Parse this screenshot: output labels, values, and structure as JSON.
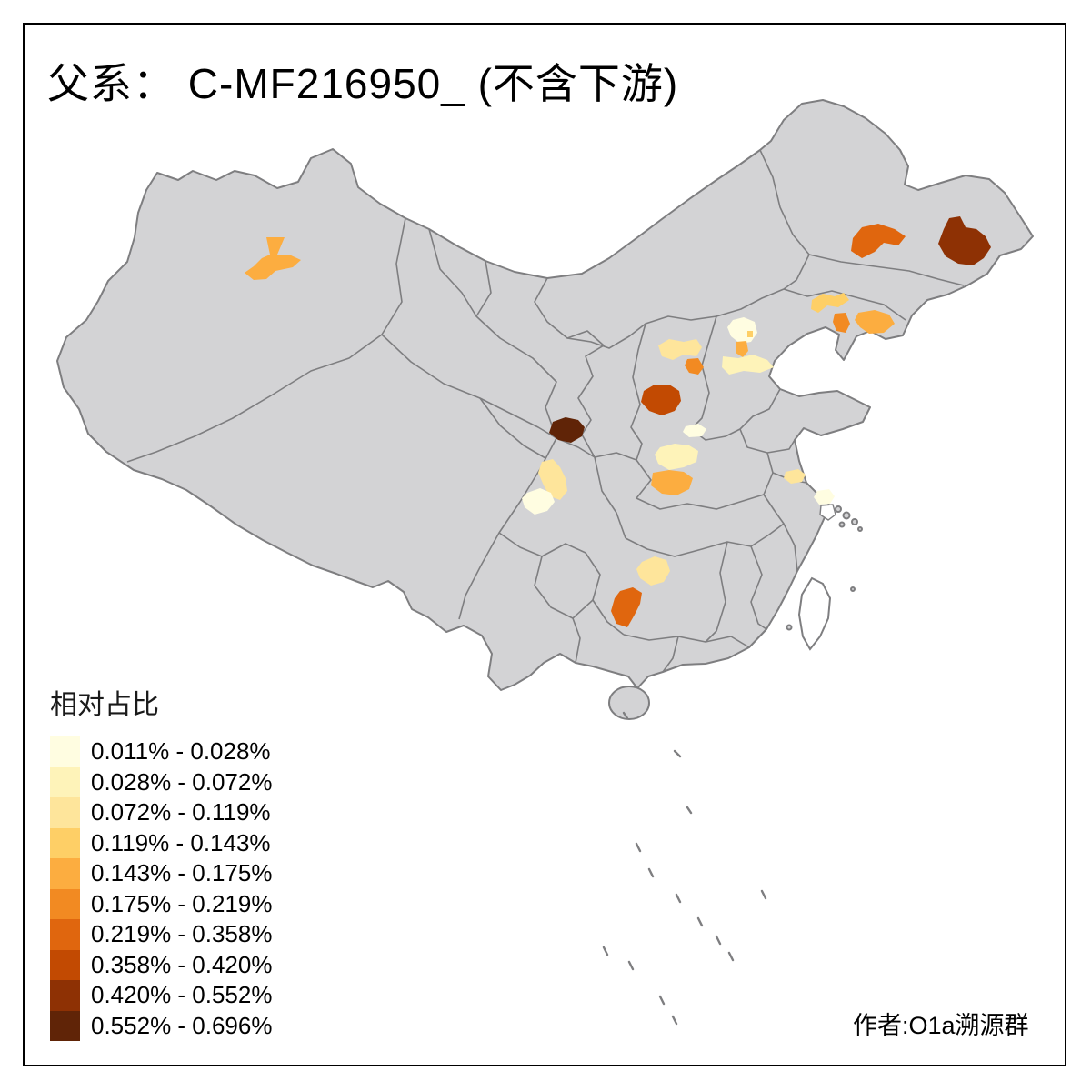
{
  "title": "父系：  C-MF216950_ (不含下游)",
  "attribution": "作者:O1a溯源群",
  "legend": {
    "title": "相对占比",
    "classes": [
      {
        "label": "0.011% - 0.028%",
        "color": "#FFFDE1"
      },
      {
        "label": "0.028% - 0.072%",
        "color": "#FEF3B9"
      },
      {
        "label": "0.072% - 0.119%",
        "color": "#FEE59B"
      },
      {
        "label": "0.119% - 0.143%",
        "color": "#FECF66"
      },
      {
        "label": "0.143% - 0.175%",
        "color": "#FCAD40"
      },
      {
        "label": "0.175% - 0.219%",
        "color": "#F28A22"
      },
      {
        "label": "0.219% - 0.358%",
        "color": "#E0660E"
      },
      {
        "label": "0.358% - 0.420%",
        "color": "#C24A02"
      },
      {
        "label": "0.420% - 0.552%",
        "color": "#8E3104"
      },
      {
        "label": "0.552% - 0.696%",
        "color": "#602407"
      }
    ]
  },
  "map": {
    "land_fill": "#D3D3D5",
    "border_color": "#7E7E80",
    "sea_fill": "#FFFFFF",
    "uncolored_island_fill": "#FFFFFF",
    "regions": [
      {
        "name": "region-north-xinjiang",
        "class": 5
      },
      {
        "name": "region-west-jilin",
        "class": 7
      },
      {
        "name": "region-east-jilin-heilongjiang",
        "class": 9
      },
      {
        "name": "region-central-liaoning-nw",
        "class": 4
      },
      {
        "name": "region-central-liaoning",
        "class": 6
      },
      {
        "name": "region-se-liaoning",
        "class": 5
      },
      {
        "name": "region-beijing",
        "class": 1
      },
      {
        "name": "region-beijing-urban",
        "class": 4
      },
      {
        "name": "region-north-tianjin",
        "class": 5
      },
      {
        "name": "region-south-tianjin-hebei",
        "class": 2
      },
      {
        "name": "region-north-shanxi",
        "class": 3
      },
      {
        "name": "region-east-shanxi",
        "class": 6
      },
      {
        "name": "region-southwest-shanxi",
        "class": 8
      },
      {
        "name": "region-south-shanxi-small",
        "class": 1
      },
      {
        "name": "region-south-shanxi-large",
        "class": 2
      },
      {
        "name": "region-west-henan",
        "class": 5
      },
      {
        "name": "region-central-shaanxi",
        "class": 10
      },
      {
        "name": "region-northeast-sichuan",
        "class": 3
      },
      {
        "name": "region-central-sichuan",
        "class": 1
      },
      {
        "name": "region-central-anhui",
        "class": 3
      },
      {
        "name": "region-south-jiangsu",
        "class": 1
      },
      {
        "name": "region-northwest-hunan",
        "class": 3
      },
      {
        "name": "region-central-guizhou",
        "class": 7
      }
    ]
  }
}
